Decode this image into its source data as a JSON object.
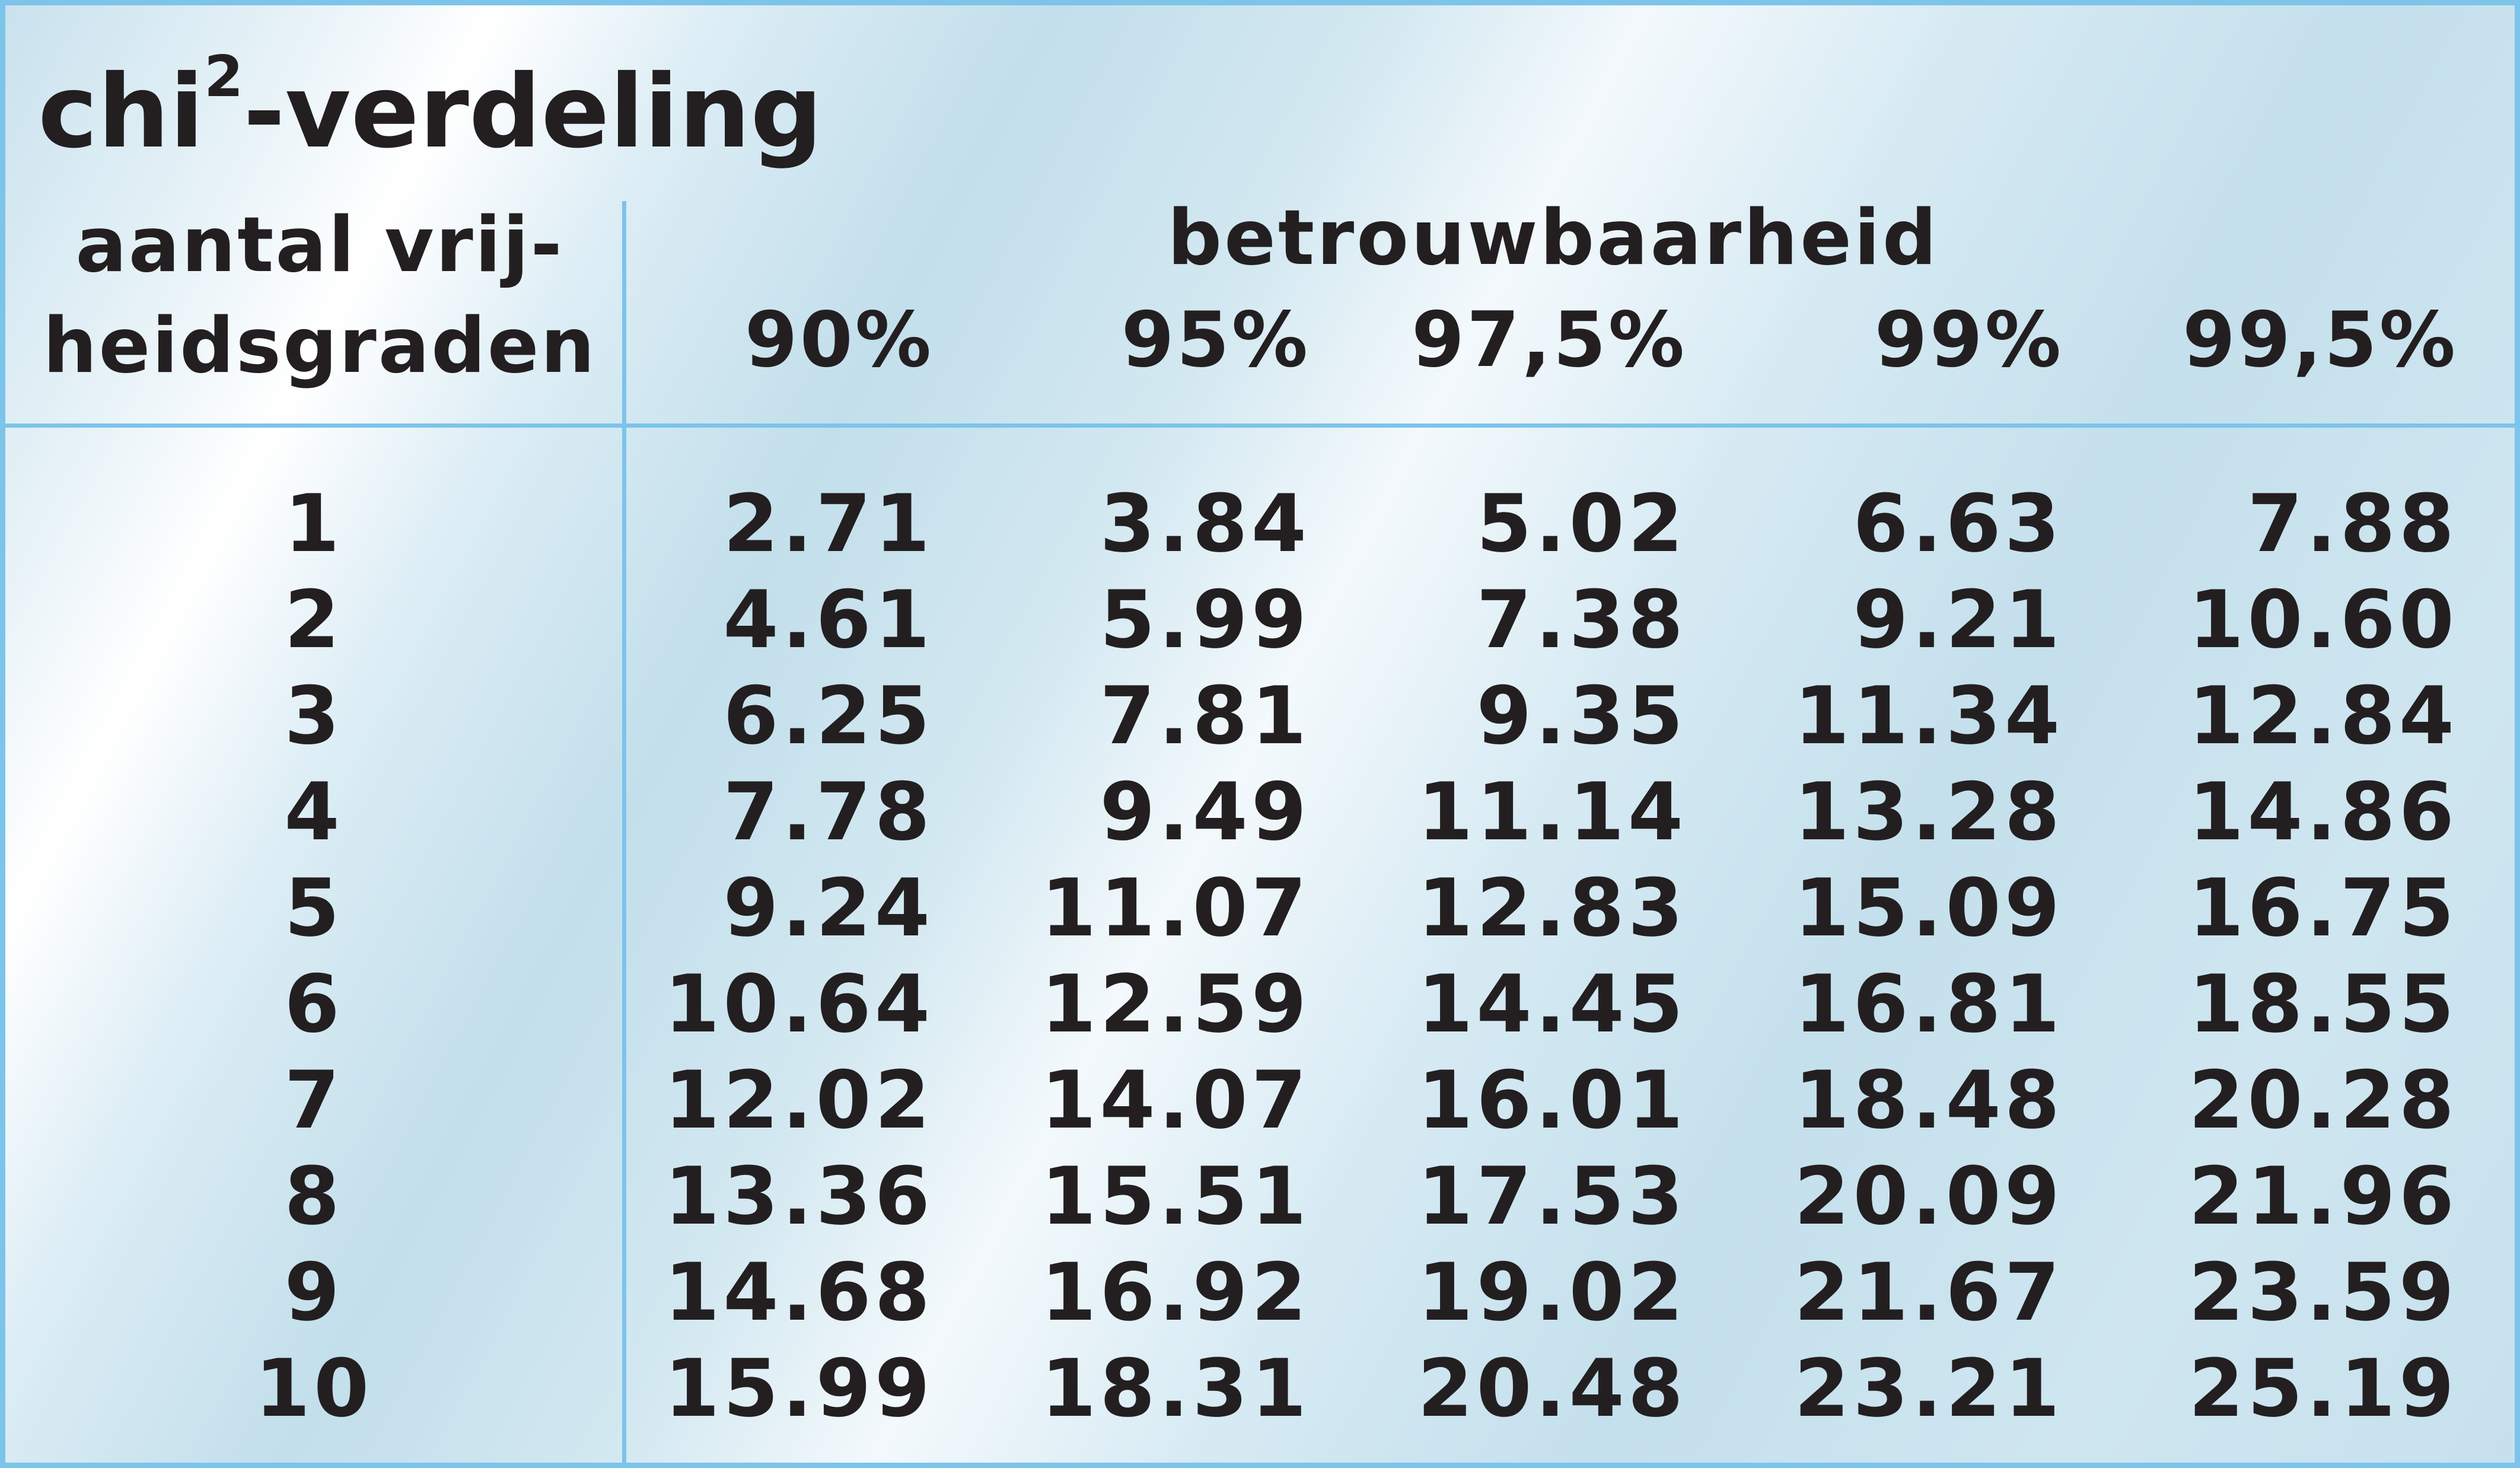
{
  "title": "chi",
  "title_sup": "2",
  "title_rest": "-verdeling",
  "dof_header": [
    "aantal vrij-",
    "heidsgraden"
  ],
  "group_header": "betrouwbaarheid",
  "columns": [
    "90%",
    "95%",
    "97,5%",
    "99%",
    "99,5%"
  ],
  "rows": [
    {
      "dof": "1",
      "values": [
        "2.71",
        "3.84",
        "5.02",
        "6.63",
        "7.88"
      ]
    },
    {
      "dof": "2",
      "values": [
        "4.61",
        "5.99",
        "7.38",
        "9.21",
        "10.60"
      ]
    },
    {
      "dof": "3",
      "values": [
        "6.25",
        "7.81",
        "9.35",
        "11.34",
        "12.84"
      ]
    },
    {
      "dof": "4",
      "values": [
        "7.78",
        "9.49",
        "11.14",
        "13.28",
        "14.86"
      ]
    },
    {
      "dof": "5",
      "values": [
        "9.24",
        "11.07",
        "12.83",
        "15.09",
        "16.75"
      ]
    },
    {
      "dof": "6",
      "values": [
        "10.64",
        "12.59",
        "14.45",
        "16.81",
        "18.55"
      ]
    },
    {
      "dof": "7",
      "values": [
        "12.02",
        "14.07",
        "16.01",
        "18.48",
        "20.28"
      ]
    },
    {
      "dof": "8",
      "values": [
        "13.36",
        "15.51",
        "17.53",
        "20.09",
        "21.96"
      ]
    },
    {
      "dof": "9",
      "values": [
        "14.68",
        "16.92",
        "19.02",
        "21.67",
        "23.59"
      ]
    },
    {
      "dof": "10",
      "values": [
        "15.99",
        "18.31",
        "20.48",
        "23.21",
        "25.19"
      ]
    }
  ],
  "colors": {
    "border": "#7cc4ea",
    "text": "#231f20",
    "background": "#cfe6f0"
  }
}
